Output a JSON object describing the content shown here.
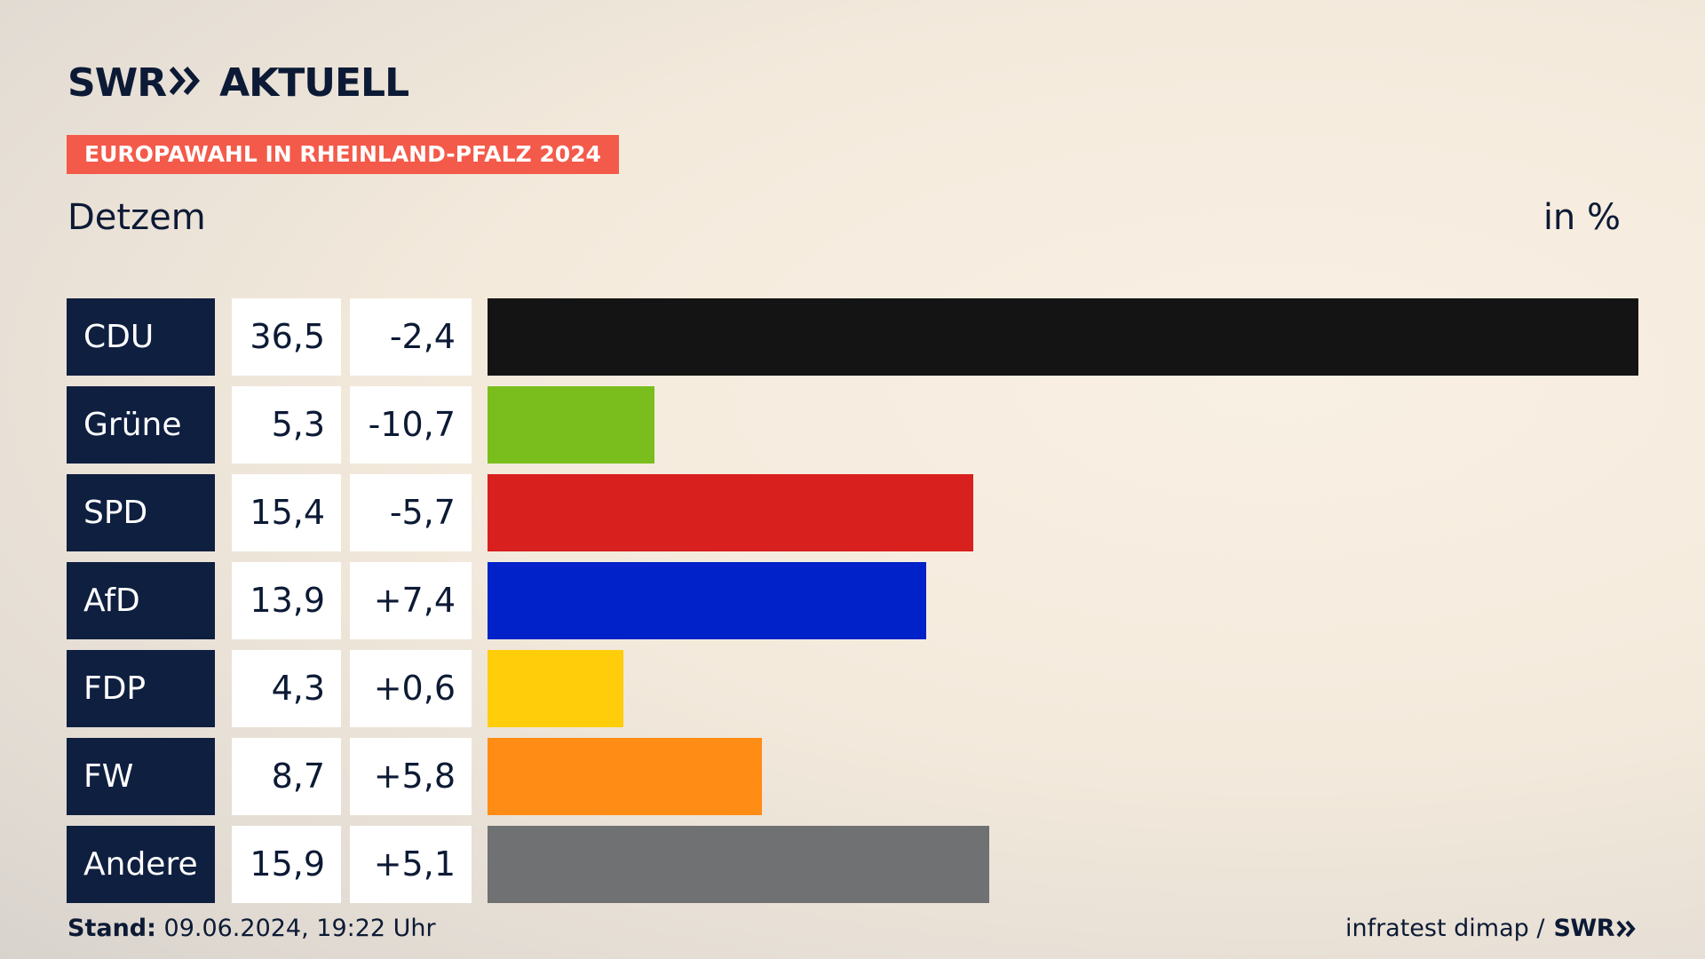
{
  "brand": {
    "logo_left": "SWR",
    "logo_right": "AKTUELL",
    "color": "#0c1a35"
  },
  "banner": {
    "label": "EUROPAWAHL IN RHEINLAND-PFALZ 2024",
    "color": "#f45a4a"
  },
  "subtitle": "Detzem",
  "unit": "in %",
  "chart_data": {
    "type": "bar",
    "orientation": "horizontal",
    "categories": [
      "CDU",
      "Grüne",
      "SPD",
      "AfD",
      "FDP",
      "FW",
      "Andere"
    ],
    "values": [
      36.5,
      5.3,
      15.4,
      13.9,
      4.3,
      8.7,
      15.9
    ],
    "value_labels": [
      "36,5",
      "5,3",
      "15,4",
      "13,9",
      "4,3",
      "8,7",
      "15,9"
    ],
    "diff_labels": [
      "-2,4",
      "-10,7",
      "-5,7",
      "+7,4",
      "+0,6",
      "+5,8",
      "+5,1"
    ],
    "colors": [
      "#141414",
      "#7abe1e",
      "#d8201e",
      "#0022c8",
      "#ffcd0a",
      "#ff8c14",
      "#707173"
    ],
    "xlim": [
      0,
      36.5
    ],
    "grid": false,
    "unit": "in %"
  },
  "footer": {
    "stand_label": "Stand:",
    "stand_value": "09.06.2024, 19:22 Uhr",
    "source": "infratest dimap /",
    "source_brand": "SWR"
  }
}
